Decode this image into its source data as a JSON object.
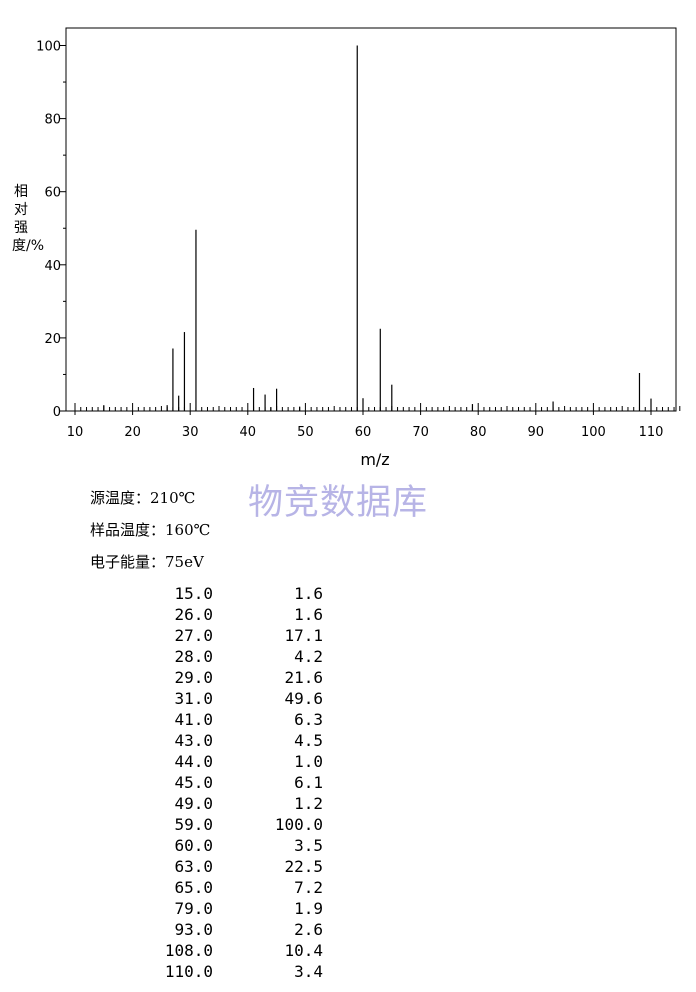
{
  "chart_data": {
    "type": "bar",
    "xlabel": "m/z",
    "ylabel": "相对强度/%",
    "xlim": [
      10,
      115
    ],
    "ylim": [
      0,
      105
    ],
    "x_ticks": [
      "10",
      "20",
      "30",
      "40",
      "50",
      "60",
      "70",
      "80",
      "90",
      "100",
      "110"
    ],
    "y_ticks": [
      "0",
      "20",
      "40",
      "60",
      "80",
      "100"
    ],
    "grid": false,
    "peaks": [
      {
        "mz": 15.0,
        "intensity": 1.6
      },
      {
        "mz": 26.0,
        "intensity": 1.6
      },
      {
        "mz": 27.0,
        "intensity": 17.1
      },
      {
        "mz": 28.0,
        "intensity": 4.2
      },
      {
        "mz": 29.0,
        "intensity": 21.6
      },
      {
        "mz": 31.0,
        "intensity": 49.6
      },
      {
        "mz": 41.0,
        "intensity": 6.3
      },
      {
        "mz": 43.0,
        "intensity": 4.5
      },
      {
        "mz": 44.0,
        "intensity": 1.0
      },
      {
        "mz": 45.0,
        "intensity": 6.1
      },
      {
        "mz": 49.0,
        "intensity": 1.2
      },
      {
        "mz": 59.0,
        "intensity": 100.0
      },
      {
        "mz": 60.0,
        "intensity": 3.5
      },
      {
        "mz": 63.0,
        "intensity": 22.5
      },
      {
        "mz": 65.0,
        "intensity": 7.2
      },
      {
        "mz": 79.0,
        "intensity": 1.9
      },
      {
        "mz": 93.0,
        "intensity": 2.6
      },
      {
        "mz": 108.0,
        "intensity": 10.4
      },
      {
        "mz": 110.0,
        "intensity": 3.4
      }
    ]
  },
  "watermark": "物竞数据库",
  "conditions": {
    "source_temp": "源温度：210℃",
    "sample_temp": "样品温度：160℃",
    "electron_energy": "电子能量：75eV"
  },
  "peak_table": [
    {
      "mz": "15.0",
      "abundance": "1.6"
    },
    {
      "mz": "26.0",
      "abundance": "1.6"
    },
    {
      "mz": "27.0",
      "abundance": "17.1"
    },
    {
      "mz": "28.0",
      "abundance": "4.2"
    },
    {
      "mz": "29.0",
      "abundance": "21.6"
    },
    {
      "mz": "31.0",
      "abundance": "49.6"
    },
    {
      "mz": "41.0",
      "abundance": "6.3"
    },
    {
      "mz": "43.0",
      "abundance": "4.5"
    },
    {
      "mz": "44.0",
      "abundance": "1.0"
    },
    {
      "mz": "45.0",
      "abundance": "6.1"
    },
    {
      "mz": "49.0",
      "abundance": "1.2"
    },
    {
      "mz": "59.0",
      "abundance": "100.0"
    },
    {
      "mz": "60.0",
      "abundance": "3.5"
    },
    {
      "mz": "63.0",
      "abundance": "22.5"
    },
    {
      "mz": "65.0",
      "abundance": "7.2"
    },
    {
      "mz": "79.0",
      "abundance": "1.9"
    },
    {
      "mz": "93.0",
      "abundance": "2.6"
    },
    {
      "mz": "108.0",
      "abundance": "10.4"
    },
    {
      "mz": "110.0",
      "abundance": "3.4"
    }
  ]
}
